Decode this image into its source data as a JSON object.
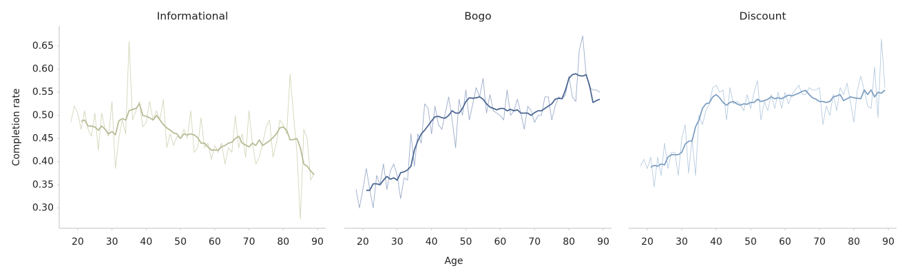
{
  "chart_data": [
    {
      "type": "line",
      "title": "Informational",
      "ylabel": "Completion rate",
      "x": [
        18,
        19,
        20,
        21,
        22,
        23,
        24,
        25,
        26,
        27,
        28,
        29,
        30,
        31,
        32,
        33,
        34,
        35,
        36,
        37,
        38,
        39,
        40,
        41,
        42,
        43,
        44,
        45,
        46,
        47,
        48,
        49,
        50,
        51,
        52,
        53,
        54,
        55,
        56,
        57,
        58,
        59,
        60,
        61,
        62,
        63,
        64,
        65,
        66,
        67,
        68,
        69,
        70,
        71,
        72,
        73,
        74,
        75,
        76,
        77,
        78,
        79,
        80,
        81,
        82,
        83,
        84,
        85,
        86,
        87,
        88,
        89
      ],
      "series": [
        {
          "color": "#d3d5b8",
          "values": [
            0.485,
            0.52,
            0.505,
            0.47,
            0.51,
            0.47,
            0.455,
            0.505,
            0.425,
            0.505,
            0.47,
            0.455,
            0.53,
            0.385,
            0.45,
            0.49,
            0.46,
            0.66,
            0.49,
            0.51,
            0.53,
            0.475,
            0.485,
            0.53,
            0.49,
            0.51,
            0.49,
            0.535,
            0.43,
            0.46,
            0.435,
            0.455,
            0.45,
            0.47,
            0.45,
            0.51,
            0.42,
            0.43,
            0.495,
            0.43,
            0.44,
            0.405,
            0.435,
            0.42,
            0.44,
            0.395,
            0.43,
            0.42,
            0.5,
            0.43,
            0.46,
            0.41,
            0.51,
            0.44,
            0.395,
            0.41,
            0.44,
            0.475,
            0.49,
            0.41,
            0.44,
            0.49,
            0.48,
            0.46,
            0.59,
            0.5,
            0.42,
            0.275,
            0.47,
            0.45,
            0.36,
            0.375
          ]
        },
        {
          "color": "#b8bb96",
          "values": [
            null,
            null,
            null,
            0.487,
            0.49,
            0.477,
            0.477,
            0.475,
            0.468,
            0.477,
            0.47,
            0.46,
            0.465,
            0.458,
            0.488,
            0.493,
            0.49,
            0.51,
            0.513,
            0.515,
            0.525,
            0.5,
            0.498,
            0.495,
            0.49,
            0.5,
            0.49,
            0.48,
            0.473,
            0.468,
            0.462,
            0.46,
            0.45,
            0.46,
            0.458,
            0.46,
            0.458,
            0.452,
            0.44,
            0.44,
            0.432,
            0.425,
            0.425,
            0.425,
            0.432,
            0.435,
            0.44,
            0.442,
            0.45,
            0.455,
            0.44,
            0.436,
            0.432,
            0.44,
            0.435,
            0.447,
            0.435,
            0.44,
            0.445,
            0.452,
            0.46,
            0.473,
            0.475,
            0.468,
            0.447,
            0.448,
            0.45,
            0.43,
            0.395,
            0.39,
            0.38,
            0.372
          ]
        }
      ],
      "xlim": [
        14.6,
        92.4
      ],
      "xticks": [
        20,
        30,
        40,
        50,
        60,
        70,
        80,
        90
      ],
      "ylim": [
        0.256,
        0.693
      ],
      "yticks": [
        {
          "value": 0.3,
          "label": "0.30"
        },
        0.35,
        {
          "value": 0.4,
          "label": "0.40"
        },
        0.45,
        {
          "value": 0.5,
          "label": "0.50"
        },
        0.55,
        {
          "value": 0.6,
          "label": "0.60"
        },
        0.65
      ]
    },
    {
      "type": "line",
      "title": "Bogo",
      "xlabel": "Age",
      "x": [
        18,
        19,
        20,
        21,
        22,
        23,
        24,
        25,
        26,
        27,
        28,
        29,
        30,
        31,
        32,
        33,
        34,
        35,
        36,
        37,
        38,
        39,
        40,
        41,
        42,
        43,
        44,
        45,
        46,
        47,
        48,
        49,
        50,
        51,
        52,
        53,
        54,
        55,
        56,
        57,
        58,
        59,
        60,
        61,
        62,
        63,
        64,
        65,
        66,
        67,
        68,
        69,
        70,
        71,
        72,
        73,
        74,
        75,
        76,
        77,
        78,
        79,
        80,
        81,
        82,
        83,
        84,
        85,
        86,
        87,
        88,
        89
      ],
      "series": [
        {
          "color": "#9aabc9",
          "values": [
            0.34,
            0.3,
            0.34,
            0.385,
            0.34,
            0.3,
            0.37,
            0.35,
            0.395,
            0.34,
            0.38,
            0.395,
            0.37,
            0.32,
            0.365,
            0.36,
            0.46,
            0.39,
            0.46,
            0.44,
            0.525,
            0.515,
            0.46,
            0.52,
            0.48,
            0.47,
            0.505,
            0.54,
            0.49,
            0.43,
            0.535,
            0.5,
            0.555,
            0.49,
            0.525,
            0.56,
            0.54,
            0.58,
            0.505,
            0.545,
            0.51,
            0.505,
            0.5,
            0.49,
            0.555,
            0.5,
            0.51,
            0.535,
            0.505,
            0.47,
            0.52,
            0.51,
            0.485,
            0.5,
            0.5,
            0.54,
            0.54,
            0.49,
            0.52,
            0.54,
            0.535,
            0.545,
            0.585,
            0.54,
            0.53,
            0.64,
            0.672,
            0.59,
            0.56,
            0.555,
            0.555,
            0.55
          ]
        },
        {
          "color": "#4b6691",
          "values": [
            null,
            null,
            null,
            0.338,
            0.338,
            0.352,
            0.352,
            0.35,
            0.36,
            0.368,
            0.362,
            0.365,
            0.36,
            0.376,
            0.378,
            0.382,
            0.39,
            0.425,
            0.445,
            0.46,
            0.468,
            0.478,
            0.488,
            0.497,
            0.498,
            0.495,
            0.494,
            0.5,
            0.51,
            0.505,
            0.505,
            0.515,
            0.53,
            0.538,
            0.537,
            0.538,
            0.54,
            0.535,
            0.525,
            0.518,
            0.515,
            0.512,
            0.515,
            0.515,
            0.51,
            0.513,
            0.51,
            0.512,
            0.505,
            0.505,
            0.505,
            0.5,
            0.506,
            0.51,
            0.51,
            0.515,
            0.52,
            0.525,
            0.535,
            0.537,
            0.536,
            0.555,
            0.58,
            0.588,
            0.59,
            0.586,
            0.585,
            0.588,
            0.565,
            0.528,
            0.532,
            0.535
          ]
        }
      ],
      "xlim": [
        14.6,
        92.4
      ],
      "xticks": [
        20,
        30,
        40,
        50,
        60,
        70,
        80,
        90
      ],
      "ylim": [
        0.256,
        0.693
      ]
    },
    {
      "type": "line",
      "title": "Discount",
      "x": [
        18,
        19,
        20,
        21,
        22,
        23,
        24,
        25,
        26,
        27,
        28,
        29,
        30,
        31,
        32,
        33,
        34,
        35,
        36,
        37,
        38,
        39,
        40,
        41,
        42,
        43,
        44,
        45,
        46,
        47,
        48,
        49,
        50,
        51,
        52,
        53,
        54,
        55,
        56,
        57,
        58,
        59,
        60,
        61,
        62,
        63,
        64,
        65,
        66,
        67,
        68,
        69,
        70,
        71,
        72,
        73,
        74,
        75,
        76,
        77,
        78,
        79,
        80,
        81,
        82,
        83,
        84,
        85,
        86,
        87,
        88,
        89
      ],
      "series": [
        {
          "color": "#b6cbe0",
          "values": [
            0.39,
            0.405,
            0.385,
            0.41,
            0.345,
            0.41,
            0.37,
            0.44,
            0.385,
            0.42,
            0.42,
            0.37,
            0.45,
            0.48,
            0.375,
            0.45,
            0.37,
            0.5,
            0.48,
            0.51,
            0.525,
            0.56,
            0.565,
            0.55,
            0.555,
            0.49,
            0.56,
            0.525,
            0.53,
            0.525,
            0.51,
            0.545,
            0.515,
            0.55,
            0.575,
            0.49,
            0.53,
            0.51,
            0.545,
            0.515,
            0.55,
            0.515,
            0.55,
            0.525,
            0.545,
            0.555,
            0.565,
            0.545,
            0.545,
            0.56,
            0.555,
            0.555,
            0.56,
            0.48,
            0.52,
            0.5,
            0.545,
            0.51,
            0.56,
            0.545,
            0.57,
            0.53,
            0.485,
            0.555,
            0.585,
            0.555,
            0.52,
            0.515,
            0.605,
            0.495,
            0.665,
            0.56
          ]
        },
        {
          "color": "#7f9fc2",
          "values": [
            null,
            null,
            null,
            0.388,
            0.392,
            0.39,
            0.395,
            0.393,
            0.41,
            0.415,
            0.415,
            0.415,
            0.42,
            0.438,
            0.444,
            0.445,
            0.475,
            0.49,
            0.515,
            0.525,
            0.527,
            0.54,
            0.545,
            0.538,
            0.528,
            0.522,
            0.528,
            0.53,
            0.525,
            0.522,
            0.525,
            0.524,
            0.528,
            0.528,
            0.535,
            0.53,
            0.532,
            0.535,
            0.54,
            0.536,
            0.538,
            0.536,
            0.54,
            0.544,
            0.542,
            0.545,
            0.548,
            0.552,
            0.554,
            0.545,
            0.538,
            0.535,
            0.53,
            0.53,
            0.528,
            0.53,
            0.54,
            0.542,
            0.545,
            0.532,
            0.536,
            0.54,
            0.538,
            0.537,
            0.536,
            0.555,
            0.545,
            0.555,
            0.54,
            0.55,
            0.548,
            0.555
          ]
        }
      ],
      "xlim": [
        14.6,
        92.4
      ],
      "xticks": [
        20,
        30,
        40,
        50,
        60,
        70,
        80,
        90
      ],
      "ylim": [
        0.256,
        0.693
      ]
    }
  ]
}
